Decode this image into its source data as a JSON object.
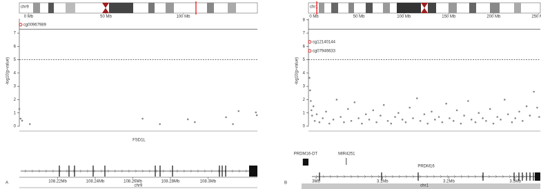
{
  "chart_data": [
    {
      "type": "scatter",
      "panel_label": "A",
      "chromosome": "chr9",
      "ideogram_lim": [
        -6,
        148
      ],
      "ideogram_ticks": [
        {
          "value": 0,
          "label": "0 Mb"
        },
        {
          "value": 50,
          "label": "50 Mb"
        },
        {
          "value": 100,
          "label": "100 Mb"
        }
      ],
      "ideogram_marker": 108.26,
      "ylabel": "-log10(p-value)",
      "xlabel": "chr9",
      "xlim": [
        108.1996,
        108.3263
      ],
      "ylim": [
        0,
        8.3
      ],
      "yticks": [
        0,
        1,
        2,
        3,
        4,
        5,
        6,
        7
      ],
      "xticks": [
        {
          "value": 108.22,
          "label": "108.22Mb"
        },
        {
          "value": 108.24,
          "label": "108.24Mb"
        },
        {
          "value": 108.26,
          "label": "108.26Mb"
        },
        {
          "value": 108.28,
          "label": "108.28Mb"
        },
        {
          "value": 108.3,
          "label": "108.3Mb"
        }
      ],
      "thresholds": [
        {
          "value": 7.3,
          "style": "solid"
        },
        {
          "value": 5,
          "style": "dotted"
        }
      ],
      "color": "#888888",
      "highlight_color": "#d62728",
      "x": [
        108.1996,
        108.2003,
        108.2011,
        108.2052,
        108.2652,
        108.2744,
        108.2893,
        108.293,
        108.3096,
        108.3133,
        108.3163,
        108.3255,
        108.326
      ],
      "values": [
        1.3,
        0.57,
        0.42,
        0.16,
        0.57,
        0.16,
        0.52,
        0.31,
        0.68,
        0.16,
        1.14,
        1.04,
        0.83
      ],
      "highlights": [
        {
          "label": "cg00967989",
          "x": 108.2003,
          "value": 7.64
        }
      ],
      "genes": [
        {
          "name": "FSD1L",
          "start": 108.2003,
          "end": 108.3263
        }
      ]
    },
    {
      "type": "scatter",
      "panel_label": "B",
      "chromosome": "chr1",
      "ideogram_lim": [
        -6.2,
        252
      ],
      "ideogram_ticks": [
        {
          "value": 0,
          "label": "0 Mb"
        },
        {
          "value": 50,
          "label": "50 Mb"
        },
        {
          "value": 100,
          "label": "100 Mb"
        },
        {
          "value": 150,
          "label": "150 Mb"
        },
        {
          "value": 200,
          "label": "200 Mb"
        },
        {
          "value": 250,
          "label": "250 Mb"
        }
      ],
      "ideogram_marker": 3.1,
      "ylabel": "-log10(p-value)",
      "xlabel": "chr1",
      "xlim": [
        2.9885,
        3.3377
      ],
      "ylim": [
        0,
        8.3
      ],
      "yticks": [
        0,
        1,
        2,
        3,
        4,
        5,
        6,
        7,
        8
      ],
      "xticks": [
        {
          "value": 3.0,
          "label": "3Mb"
        },
        {
          "value": 3.1,
          "label": "3.1Mb"
        },
        {
          "value": 3.2,
          "label": "3.2Mb"
        },
        {
          "value": 3.3,
          "label": "3.3Mb"
        }
      ],
      "thresholds": [
        {
          "value": 7.3,
          "style": "solid"
        },
        {
          "value": 5,
          "style": "dotted"
        }
      ],
      "color": "#888888",
      "highlight_color": "#d62728",
      "x": [
        2.99,
        2.991,
        2.992,
        2.993,
        2.994,
        2.996,
        2.998,
        3.001,
        3.005,
        3.01,
        3.015,
        3.02,
        3.026,
        3.031,
        3.037,
        3.042,
        3.048,
        3.053,
        3.058,
        3.064,
        3.069,
        3.075,
        3.08,
        3.086,
        3.091,
        3.097,
        3.102,
        3.108,
        3.113,
        3.119,
        3.124,
        3.13,
        3.135,
        3.141,
        3.146,
        3.152,
        3.157,
        3.163,
        3.168,
        3.174,
        3.179,
        3.185,
        3.19,
        3.196,
        3.201,
        3.207,
        3.212,
        3.218,
        3.223,
        3.229,
        3.234,
        3.24,
        3.245,
        3.251,
        3.256,
        3.262,
        3.267,
        3.273,
        3.278,
        3.284,
        3.289,
        3.295,
        3.3,
        3.306,
        3.311,
        3.317,
        3.322,
        3.328,
        3.333,
        3.336
      ],
      "values": [
        3.64,
        2.7,
        1.9,
        1.2,
        0.8,
        1.5,
        0.4,
        0.9,
        0.3,
        0.6,
        1.1,
        0.2,
        0.5,
        2.0,
        0.7,
        0.3,
        1.3,
        0.4,
        1.8,
        0.6,
        0.2,
        0.9,
        0.5,
        1.2,
        0.3,
        0.8,
        1.6,
        0.4,
        0.2,
        0.7,
        1.0,
        0.5,
        0.3,
        1.4,
        0.6,
        2.1,
        0.4,
        0.9,
        0.2,
        1.1,
        0.5,
        0.7,
        0.3,
        1.7,
        0.6,
        0.4,
        1.2,
        0.2,
        0.8,
        1.9,
        0.5,
        0.3,
        1.0,
        0.6,
        0.4,
        1.3,
        0.2,
        0.7,
        0.5,
        2.0,
        0.9,
        0.3,
        0.6,
        1.1,
        0.4,
        1.5,
        0.8,
        2.6,
        1.4,
        0.7
      ],
      "highlights": [
        {
          "label": "cg12140144",
          "x": 2.9905,
          "value": 6.34
        },
        {
          "label": "cg07946633",
          "x": 2.9905,
          "value": 5.66
        }
      ],
      "genes": [
        {
          "name": "PRDM16-DT",
          "start": 2.98,
          "end": 2.9885
        },
        {
          "name": "MIR4251",
          "start": 3.0455,
          "end": 3.0465
        },
        {
          "name": "PRDM16",
          "start": 2.9937,
          "end": 3.3377
        }
      ]
    }
  ]
}
